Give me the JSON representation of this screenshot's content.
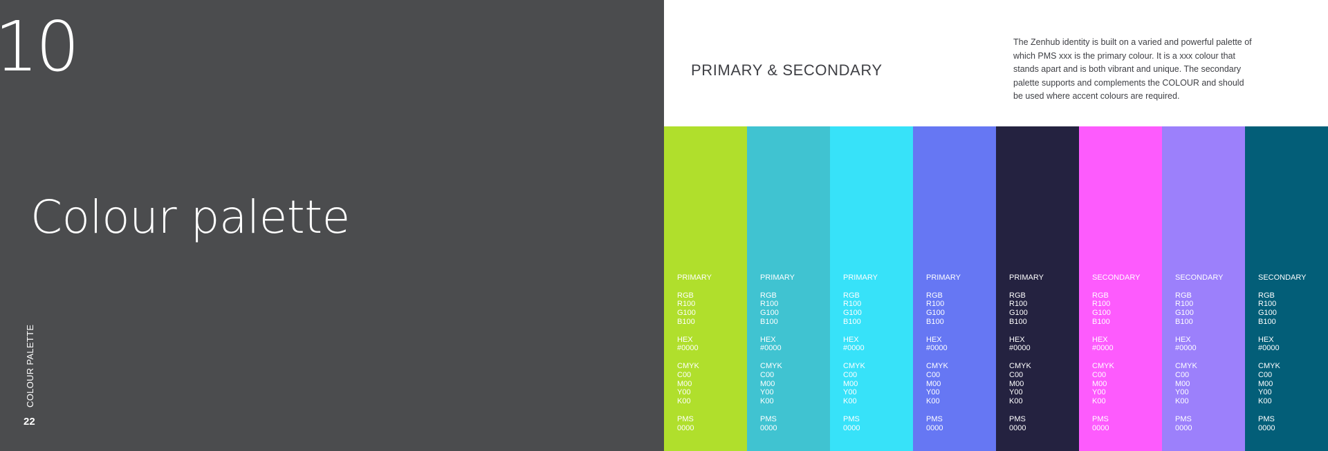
{
  "left": {
    "section_number": "10",
    "title": "Colour palette",
    "vertical_label": "COLOUR PALETTE",
    "page_number": "22"
  },
  "right": {
    "heading": "PRIMARY & SECONDARY",
    "intro": "The Zenhub identity is built on a varied and powerful palette of which PMS xxx is the primary colour. It is a xxx colour that stands apart and is both vibrant and unique. The secondary palette supports and complements the COLOUR and should be used where accent colours are required."
  },
  "swatches": [
    {
      "color": "#b0df2c",
      "type": "PRIMARY",
      "rgb_label": "RGB",
      "r": "R100",
      "g": "G100",
      "b": "B100",
      "hex_label": "HEX",
      "hex": "#0000",
      "cmyk_label": "CMYK",
      "c": "C00",
      "m": "M00",
      "y": "Y00",
      "k": "K00",
      "pms_label": "PMS",
      "pms": "0000"
    },
    {
      "color": "#40c3d1",
      "type": "PRIMARY",
      "rgb_label": "RGB",
      "r": "R100",
      "g": "G100",
      "b": "B100",
      "hex_label": "HEX",
      "hex": "#0000",
      "cmyk_label": "CMYK",
      "c": "C00",
      "m": "M00",
      "y": "Y00",
      "k": "K00",
      "pms_label": "PMS",
      "pms": "0000"
    },
    {
      "color": "#37e2f9",
      "type": "PRIMARY",
      "rgb_label": "RGB",
      "r": "R100",
      "g": "G100",
      "b": "B100",
      "hex_label": "HEX",
      "hex": "#0000",
      "cmyk_label": "CMYK",
      "c": "C00",
      "m": "M00",
      "y": "Y00",
      "k": "K00",
      "pms_label": "PMS",
      "pms": "0000"
    },
    {
      "color": "#6677f3",
      "type": "PRIMARY",
      "rgb_label": "RGB",
      "r": "R100",
      "g": "G100",
      "b": "B100",
      "hex_label": "HEX",
      "hex": "#0000",
      "cmyk_label": "CMYK",
      "c": "C00",
      "m": "M00",
      "y": "Y00",
      "k": "K00",
      "pms_label": "PMS",
      "pms": "0000"
    },
    {
      "color": "#242240",
      "type": "PRIMARY",
      "rgb_label": "RGB",
      "r": "R100",
      "g": "G100",
      "b": "B100",
      "hex_label": "HEX",
      "hex": "#0000",
      "cmyk_label": "CMYK",
      "c": "C00",
      "m": "M00",
      "y": "Y00",
      "k": "K00",
      "pms_label": "PMS",
      "pms": "0000"
    },
    {
      "color": "#fd5bfd",
      "type": "SECONDARY",
      "rgb_label": "RGB",
      "r": "R100",
      "g": "G100",
      "b": "B100",
      "hex_label": "HEX",
      "hex": "#0000",
      "cmyk_label": "CMYK",
      "c": "C00",
      "m": "M00",
      "y": "Y00",
      "k": "K00",
      "pms_label": "PMS",
      "pms": "0000"
    },
    {
      "color": "#9c80fb",
      "type": "SECONDARY",
      "rgb_label": "RGB",
      "r": "R100",
      "g": "G100",
      "b": "B100",
      "hex_label": "HEX",
      "hex": "#0000",
      "cmyk_label": "CMYK",
      "c": "C00",
      "m": "M00",
      "y": "Y00",
      "k": "K00",
      "pms_label": "PMS",
      "pms": "0000"
    },
    {
      "color": "#035e78",
      "type": "SECONDARY",
      "rgb_label": "RGB",
      "r": "R100",
      "g": "G100",
      "b": "B100",
      "hex_label": "HEX",
      "hex": "#0000",
      "cmyk_label": "CMYK",
      "c": "C00",
      "m": "M00",
      "y": "Y00",
      "k": "K00",
      "pms_label": "PMS",
      "pms": "0000"
    }
  ]
}
